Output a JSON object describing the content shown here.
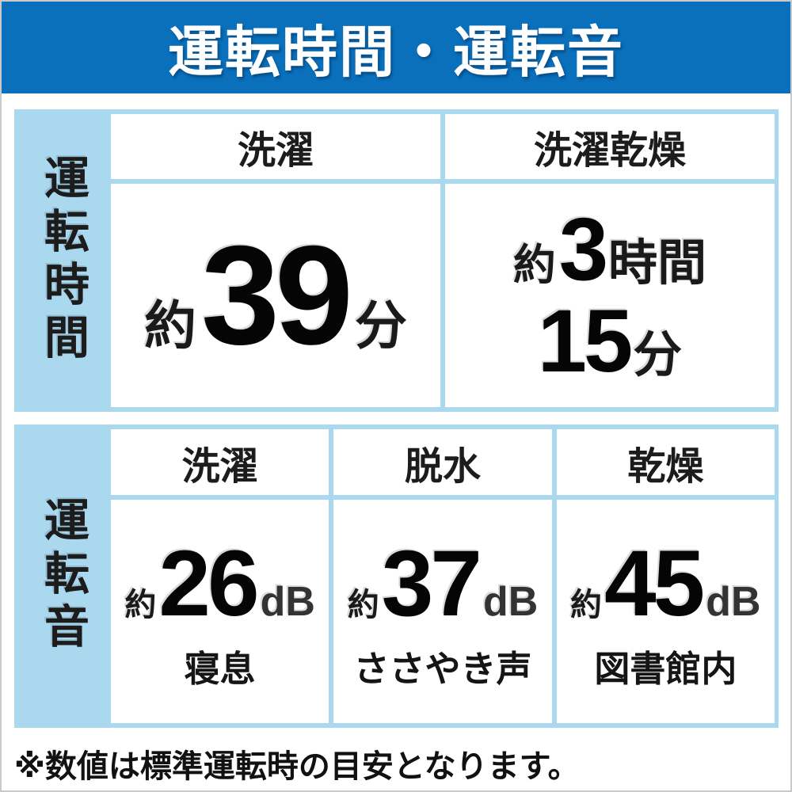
{
  "header": {
    "title": "運転時間・運転音"
  },
  "colors": {
    "banner_bg": "#0a70bc",
    "panel_bg": "#aad8ef",
    "cell_bg": "#ffffff",
    "text": "#111111",
    "unit_db_text": "#333333"
  },
  "time_section": {
    "label": "運転時間",
    "columns": [
      {
        "header": "洗濯",
        "approx": "約",
        "value": "39",
        "unit": "分"
      },
      {
        "header": "洗濯乾燥",
        "approx": "約",
        "lines": [
          {
            "value": "3",
            "unit": "時間"
          },
          {
            "value": "15",
            "unit": "分"
          }
        ]
      }
    ]
  },
  "sound_section": {
    "label": "運転音",
    "columns": [
      {
        "header": "洗濯",
        "approx": "約",
        "value": "26",
        "unit": "dB",
        "comparison": "寝息"
      },
      {
        "header": "脱水",
        "approx": "約",
        "value": "37",
        "unit": "dB",
        "comparison": "ささやき声"
      },
      {
        "header": "乾燥",
        "approx": "約",
        "value": "45",
        "unit": "dB",
        "comparison": "図書館内"
      }
    ]
  },
  "note": "※数値は標準運転時の目安となります。",
  "chart_data": [
    {
      "type": "table",
      "title": "運転時間",
      "columns": [
        "洗濯",
        "洗濯乾燥"
      ],
      "rows": [
        [
          "約39分",
          "約3時間15分"
        ]
      ],
      "values_minutes": [
        39,
        195
      ]
    },
    {
      "type": "table",
      "title": "運転音",
      "columns": [
        "洗濯",
        "脱水",
        "乾燥"
      ],
      "rows": [
        [
          "約26dB（寝息）",
          "約37dB（ささやき声）",
          "約45dB（図書館内）"
        ]
      ],
      "values_db": [
        26,
        37,
        45
      ]
    }
  ]
}
